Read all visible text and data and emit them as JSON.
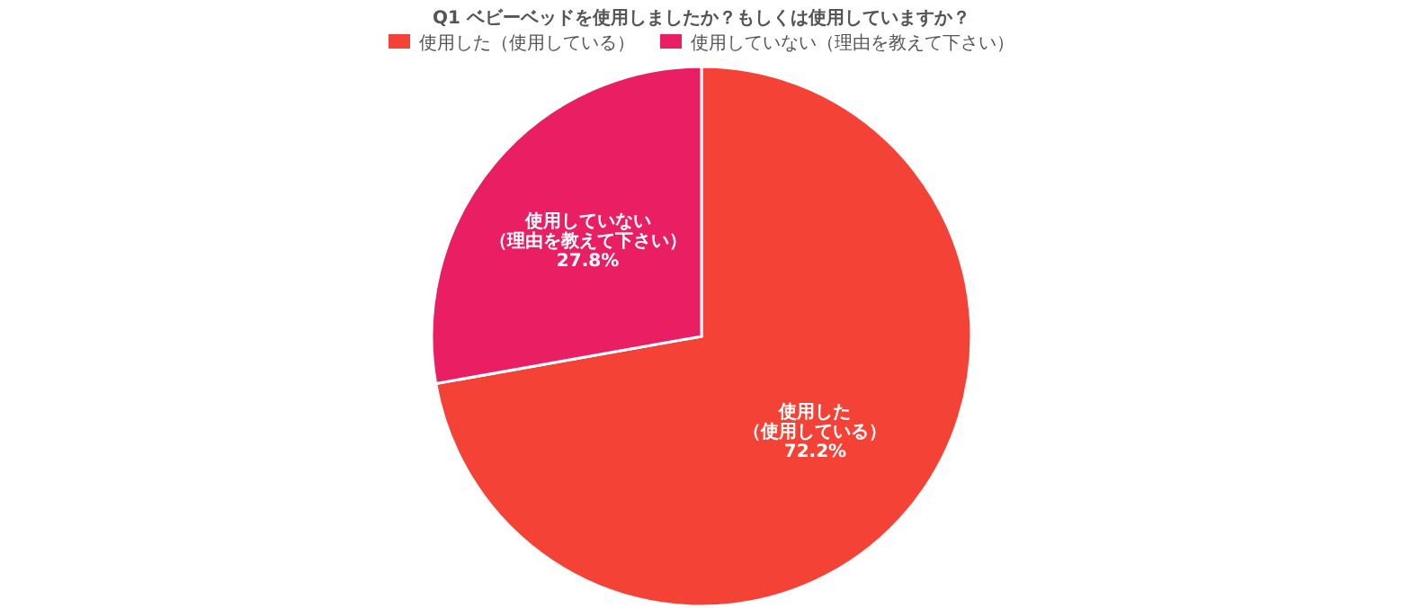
{
  "chart_data": {
    "type": "pie",
    "title": "Q1 ベビーベッドを使用しましたか？もしくは使用していますか？",
    "categories": [
      "使用した（使用している）",
      "使用していない（理由を教えて下さい）"
    ],
    "values": [
      72.2,
      27.8
    ],
    "colors": [
      "#f44336",
      "#e91e63"
    ],
    "value_labels": [
      "72.2%",
      "27.8%"
    ],
    "legend": "top"
  }
}
